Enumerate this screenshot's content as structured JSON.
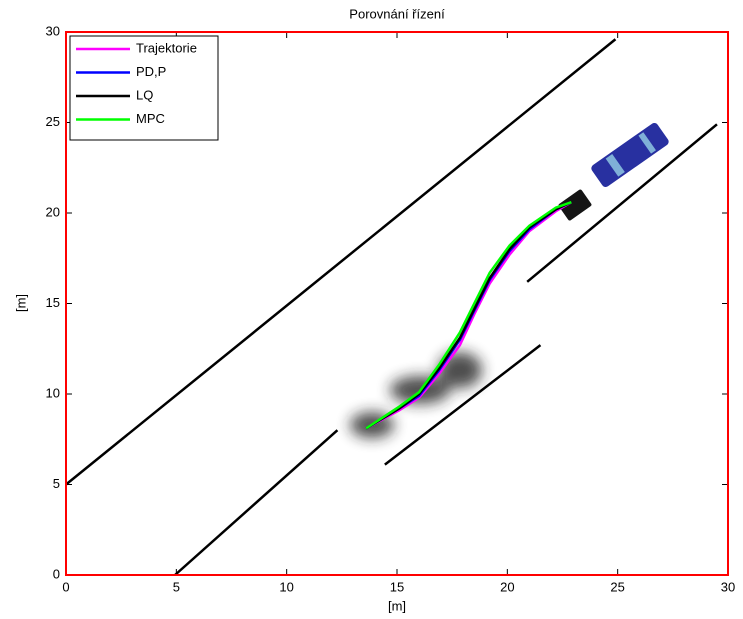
{
  "chart_data": {
    "type": "line",
    "title": "Porovnání řízení",
    "x_label": "[m]",
    "y_label": "[m]",
    "x": [
      13.6,
      15.1,
      16.0,
      16.9,
      17.85,
      18.5,
      19.2,
      20.1,
      21.0,
      22.2,
      22.9
    ],
    "series": [
      {
        "name": "Trajektorie",
        "color": "#ff00ff",
        "values": [
          8.1,
          9.1,
          9.8,
          11.1,
          12.7,
          14.4,
          16.1,
          17.7,
          19.0,
          20.1,
          20.6
        ]
      },
      {
        "name": "PD,P",
        "color": "#0000ff",
        "values": [
          8.1,
          9.2,
          9.9,
          11.3,
          13.0,
          14.6,
          16.3,
          17.9,
          19.1,
          20.2,
          20.6
        ]
      },
      {
        "name": "LQ",
        "color": "#000000",
        "values": [
          8.1,
          9.2,
          10.0,
          11.4,
          13.1,
          14.7,
          16.4,
          18.0,
          19.2,
          20.2,
          20.6
        ]
      },
      {
        "name": "MPC",
        "color": "#00ff00",
        "values": [
          8.1,
          9.3,
          10.1,
          11.6,
          13.4,
          15.0,
          16.7,
          18.2,
          19.3,
          20.3,
          20.6
        ]
      }
    ],
    "road_lines": [
      {
        "x": [
          0,
          24.9
        ],
        "y": [
          5,
          29.6
        ]
      },
      {
        "x": [
          4.94,
          12.3
        ],
        "y": [
          0,
          8.0
        ]
      },
      {
        "x": [
          14.45,
          21.5
        ],
        "y": [
          6.1,
          12.7
        ]
      },
      {
        "x": [
          20.9,
          29.5
        ],
        "y": [
          16.2,
          24.9
        ]
      }
    ],
    "road_color": "#000000",
    "xlim": [
      0,
      30
    ],
    "ylim": [
      0,
      30
    ],
    "xticks": [
      0,
      5,
      10,
      15,
      20,
      25,
      30
    ],
    "yticks": [
      0,
      5,
      10,
      15,
      20,
      25,
      30
    ],
    "legend": "upper-left",
    "frame_color": "#ff0000"
  }
}
